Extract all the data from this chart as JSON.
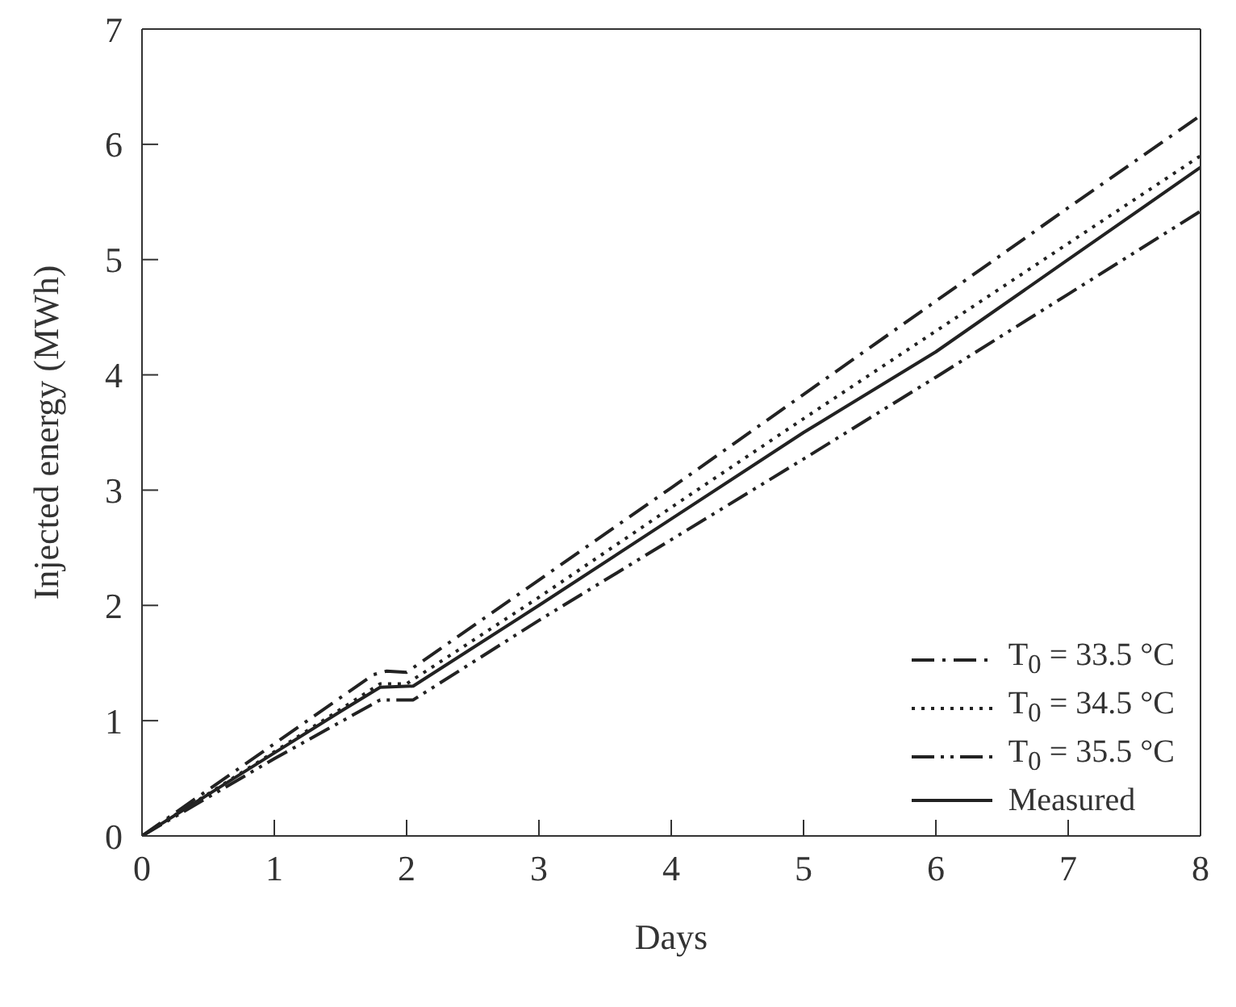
{
  "chart_data": {
    "type": "line",
    "xlabel": "Days",
    "ylabel": "Injected energy (MWh)",
    "xlim": [
      0,
      8
    ],
    "xticks": [
      0,
      1,
      2,
      3,
      4,
      5,
      6,
      7,
      8
    ],
    "ylim": [
      0,
      7
    ],
    "yticks": [
      0,
      1,
      2,
      3,
      4,
      5,
      6,
      7
    ],
    "legend": "bottom right",
    "marker": "none",
    "series": [
      {
        "name": "T$_{0}$ = 33.5 °C",
        "color": "#222222",
        "line_style": "dashdot",
        "x": [
          0,
          1,
          1.75,
          1.85,
          2,
          3,
          4,
          5,
          6,
          7,
          8
        ],
        "values": [
          0,
          0.8,
          1.4,
          1.43,
          1.42,
          2.22,
          3.02,
          3.83,
          4.64,
          5.45,
          6.25
        ]
      },
      {
        "name": "T$_{0}$ = 34.5 °C",
        "color": "#222222",
        "line_style": "dotted",
        "x": [
          0,
          1,
          1.8,
          2,
          3,
          4,
          5,
          6,
          7,
          8
        ],
        "values": [
          0,
          0.73,
          1.32,
          1.32,
          2.07,
          2.85,
          3.62,
          4.38,
          5.14,
          5.9
        ]
      },
      {
        "name": "T$_{0}$ = 35.5 °C",
        "color": "#222222",
        "line_style": "dashdotdot",
        "x": [
          0,
          1,
          1.8,
          2.05,
          3,
          4,
          5,
          6,
          7,
          8
        ],
        "values": [
          0,
          0.67,
          1.18,
          1.18,
          1.87,
          2.57,
          3.27,
          3.98,
          4.7,
          5.42
        ]
      },
      {
        "name": "Measured",
        "color": "#222222",
        "line_style": "solid",
        "x": [
          0,
          0.5,
          1,
          1.5,
          1.8,
          2.05,
          3,
          4,
          5,
          6,
          7,
          8
        ],
        "values": [
          0,
          0.36,
          0.72,
          1.08,
          1.29,
          1.3,
          2.0,
          2.75,
          3.5,
          4.2,
          5.0,
          5.8
        ]
      }
    ]
  }
}
